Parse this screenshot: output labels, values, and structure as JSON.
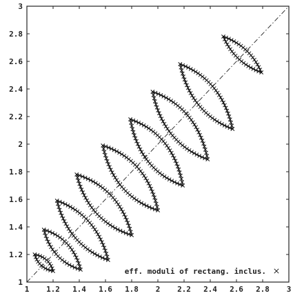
{
  "chart_data": {
    "type": "scatter",
    "title": "",
    "xlabel": "",
    "ylabel": "",
    "xlim": [
      1,
      3
    ],
    "ylim": [
      1,
      3
    ],
    "x_ticks": [
      "1",
      "1.2",
      "1.4",
      "1.6",
      "1.8",
      "2",
      "2.2",
      "2.4",
      "2.6",
      "2.8",
      "3"
    ],
    "y_ticks": [
      "1",
      "1.2",
      "1.4",
      "1.6",
      "1.8",
      "2",
      "2.2",
      "2.4",
      "2.6",
      "2.8",
      "3"
    ],
    "grid": false,
    "legend": {
      "position": "bottom-right",
      "entries": [
        {
          "label": "eff. moduli of rectang. inclus.",
          "marker": "x"
        }
      ]
    },
    "reference_line": {
      "style": "dash-dot",
      "from": [
        1,
        1
      ],
      "to": [
        3,
        3
      ]
    },
    "bounds": [
      {
        "p1": [
          1.06,
          1.2
        ],
        "p2": [
          1.2,
          1.08
        ],
        "bulge": 0.04
      },
      {
        "p1": [
          1.13,
          1.38
        ],
        "p2": [
          1.41,
          1.09
        ],
        "bulge": 0.08
      },
      {
        "p1": [
          1.23,
          1.59
        ],
        "p2": [
          1.62,
          1.16
        ],
        "bulge": 0.11
      },
      {
        "p1": [
          1.38,
          1.78
        ],
        "p2": [
          1.8,
          1.34
        ],
        "bulge": 0.12
      },
      {
        "p1": [
          1.58,
          1.99
        ],
        "p2": [
          2.0,
          1.52
        ],
        "bulge": 0.13
      },
      {
        "p1": [
          1.79,
          2.18
        ],
        "p2": [
          2.19,
          1.7
        ],
        "bulge": 0.13
      },
      {
        "p1": [
          1.96,
          2.38
        ],
        "p2": [
          2.38,
          1.89
        ],
        "bulge": 0.13
      },
      {
        "p1": [
          2.17,
          2.58
        ],
        "p2": [
          2.57,
          2.11
        ],
        "bulge": 0.12
      },
      {
        "p1": [
          2.5,
          2.78
        ],
        "p2": [
          2.79,
          2.52
        ],
        "bulge": 0.06
      }
    ]
  }
}
